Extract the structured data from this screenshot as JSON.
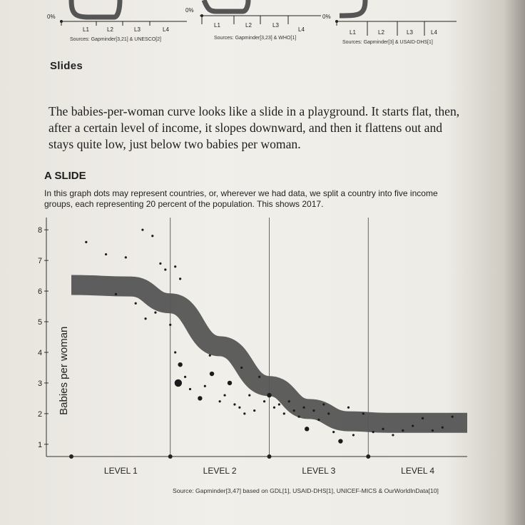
{
  "top_charts": [
    {
      "pct_label": "0%",
      "levels": [
        "L1",
        "L2",
        "L3",
        "L4"
      ],
      "source": "Sources: Gapminder[3,21] & UNESCO[2]"
    },
    {
      "pct_label": "0%",
      "levels": [
        "L1",
        "L2",
        "L3",
        "L4"
      ],
      "source": "Sources: Gapminder[3,23] & WHO[1]"
    },
    {
      "pct_label": "0%",
      "levels": [
        "L1",
        "L2",
        "L3",
        "L4"
      ],
      "source": "Sources: Gapminder[3] & USAID-DHS[1]"
    }
  ],
  "section_heading": "Slides",
  "body_text": "The babies-per-woman curve looks like a slide in a playground. It starts flat, then, after a certain level of income, it slopes downward, and then it flattens out and stays quite low, just below two babies per woman.",
  "chart": {
    "title": "A SLIDE",
    "subtitle": "In this graph dots may represent countries, or, wherever we had data, we split a country into five income groups, each representing 20 percent of the population. This shows 2017.",
    "source": "Source: Gapminder[3,47] based on GDL[1], USAID-DHS[1], UNICEF-MICS & OurWorldInData[10]"
  },
  "chart_data": {
    "type": "scatter",
    "title": "A SLIDE",
    "ylabel": "Babies per woman",
    "xlabel": "",
    "x_categories": [
      "LEVEL 1",
      "LEVEL 2",
      "LEVEL 3",
      "LEVEL 4"
    ],
    "y_ticks": [
      1,
      2,
      3,
      4,
      5,
      6,
      7,
      8
    ],
    "ylim": [
      0.6,
      8.4
    ],
    "xlim": [
      0,
      4
    ],
    "grid": false,
    "trend_band": {
      "x": [
        0,
        0.6,
        1.0,
        1.5,
        2.0,
        2.4,
        2.8,
        3.2,
        4.0
      ],
      "y": [
        6.2,
        6.15,
        5.6,
        4.2,
        2.9,
        2.15,
        1.75,
        1.7,
        1.7
      ]
    },
    "points": [
      {
        "x": 0.15,
        "y": 7.6,
        "s": 1
      },
      {
        "x": 0.35,
        "y": 7.2,
        "s": 1
      },
      {
        "x": 0.55,
        "y": 7.1,
        "s": 1
      },
      {
        "x": 0.65,
        "y": 5.6,
        "s": 1
      },
      {
        "x": 0.75,
        "y": 5.1,
        "s": 1
      },
      {
        "x": 0.85,
        "y": 5.3,
        "s": 1
      },
      {
        "x": 0.9,
        "y": 6.9,
        "s": 1
      },
      {
        "x": 0.95,
        "y": 6.7,
        "s": 1
      },
      {
        "x": 0.82,
        "y": 7.8,
        "s": 1
      },
      {
        "x": 0.72,
        "y": 8.0,
        "s": 1
      },
      {
        "x": 0.45,
        "y": 5.9,
        "s": 1
      },
      {
        "x": 1.05,
        "y": 6.8,
        "s": 1
      },
      {
        "x": 1.1,
        "y": 6.4,
        "s": 1
      },
      {
        "x": 1.0,
        "y": 4.9,
        "s": 1
      },
      {
        "x": 1.05,
        "y": 4.0,
        "s": 1
      },
      {
        "x": 1.1,
        "y": 3.6,
        "s": 2
      },
      {
        "x": 1.08,
        "y": 3.0,
        "s": 3
      },
      {
        "x": 1.15,
        "y": 3.2,
        "s": 1
      },
      {
        "x": 1.2,
        "y": 2.8,
        "s": 1
      },
      {
        "x": 1.3,
        "y": 2.5,
        "s": 2
      },
      {
        "x": 1.35,
        "y": 2.9,
        "s": 1
      },
      {
        "x": 1.4,
        "y": 3.9,
        "s": 1
      },
      {
        "x": 1.42,
        "y": 3.3,
        "s": 2
      },
      {
        "x": 1.5,
        "y": 2.4,
        "s": 1
      },
      {
        "x": 1.55,
        "y": 2.6,
        "s": 1
      },
      {
        "x": 1.6,
        "y": 3.0,
        "s": 2
      },
      {
        "x": 1.65,
        "y": 2.3,
        "s": 1
      },
      {
        "x": 1.7,
        "y": 2.2,
        "s": 1
      },
      {
        "x": 1.72,
        "y": 3.5,
        "s": 1
      },
      {
        "x": 1.75,
        "y": 2.0,
        "s": 1
      },
      {
        "x": 1.8,
        "y": 2.6,
        "s": 1
      },
      {
        "x": 1.85,
        "y": 2.1,
        "s": 1
      },
      {
        "x": 1.9,
        "y": 3.2,
        "s": 1
      },
      {
        "x": 1.95,
        "y": 2.4,
        "s": 1
      },
      {
        "x": 2.0,
        "y": 2.6,
        "s": 2
      },
      {
        "x": 2.05,
        "y": 2.2,
        "s": 1
      },
      {
        "x": 2.1,
        "y": 2.3,
        "s": 1
      },
      {
        "x": 2.15,
        "y": 2.0,
        "s": 1
      },
      {
        "x": 2.2,
        "y": 2.4,
        "s": 1
      },
      {
        "x": 2.25,
        "y": 2.1,
        "s": 1
      },
      {
        "x": 2.3,
        "y": 1.9,
        "s": 1
      },
      {
        "x": 2.35,
        "y": 2.2,
        "s": 1
      },
      {
        "x": 2.38,
        "y": 1.5,
        "s": 2
      },
      {
        "x": 2.45,
        "y": 2.1,
        "s": 1
      },
      {
        "x": 2.5,
        "y": 1.8,
        "s": 1
      },
      {
        "x": 2.55,
        "y": 2.3,
        "s": 1
      },
      {
        "x": 2.6,
        "y": 2.0,
        "s": 1
      },
      {
        "x": 2.65,
        "y": 1.4,
        "s": 1
      },
      {
        "x": 2.72,
        "y": 1.1,
        "s": 2
      },
      {
        "x": 2.8,
        "y": 2.2,
        "s": 1
      },
      {
        "x": 2.85,
        "y": 1.3,
        "s": 1
      },
      {
        "x": 2.95,
        "y": 2.0,
        "s": 1
      },
      {
        "x": 3.05,
        "y": 1.4,
        "s": 1
      },
      {
        "x": 3.15,
        "y": 1.5,
        "s": 1
      },
      {
        "x": 3.25,
        "y": 1.3,
        "s": 1
      },
      {
        "x": 3.35,
        "y": 1.45,
        "s": 1
      },
      {
        "x": 3.45,
        "y": 1.6,
        "s": 1
      },
      {
        "x": 3.55,
        "y": 1.85,
        "s": 1
      },
      {
        "x": 3.65,
        "y": 1.45,
        "s": 1
      },
      {
        "x": 3.75,
        "y": 1.55,
        "s": 1
      },
      {
        "x": 3.85,
        "y": 1.9,
        "s": 1
      }
    ]
  }
}
